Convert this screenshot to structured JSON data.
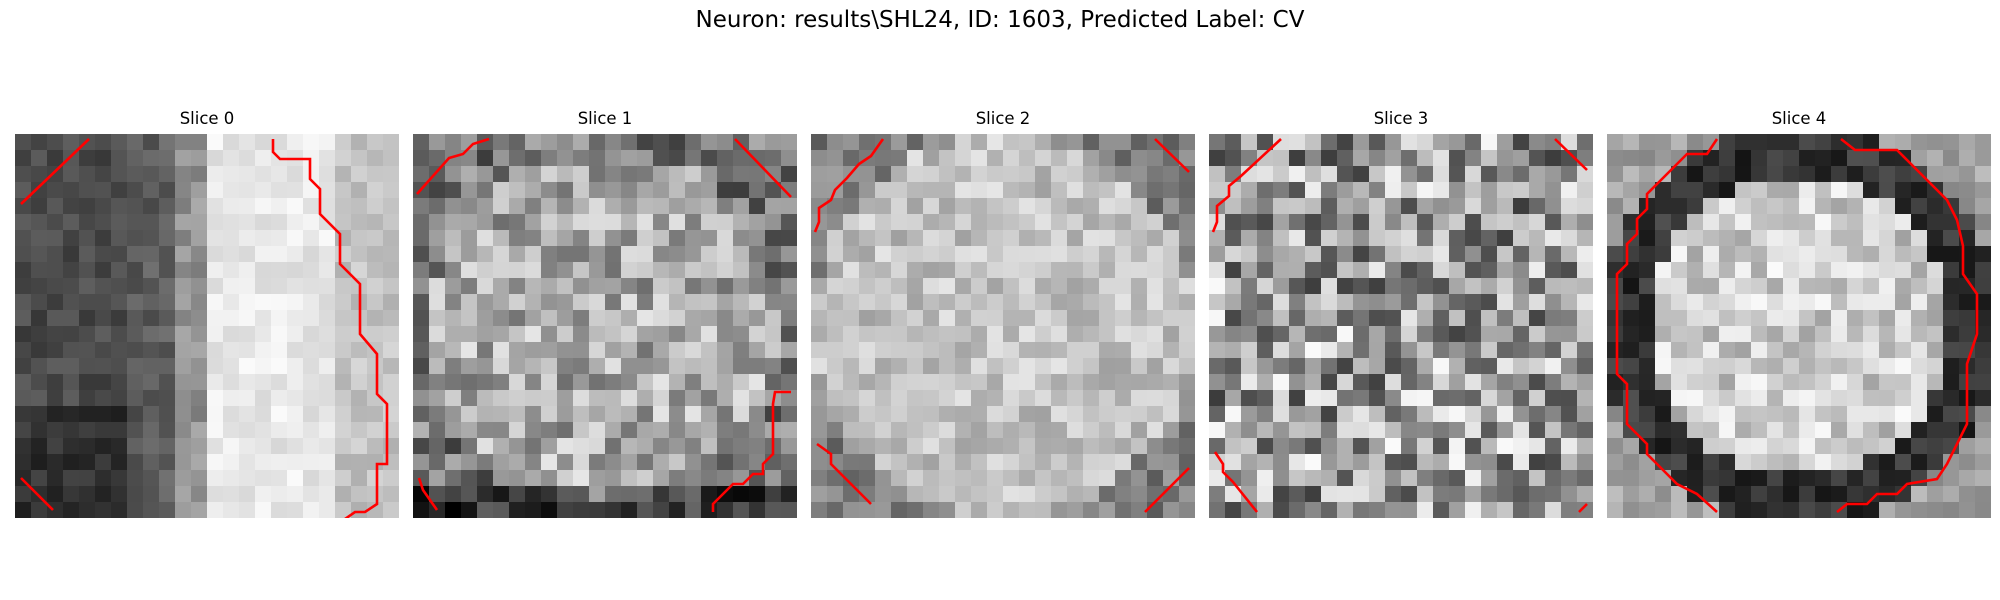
{
  "figure": {
    "title": "Neuron: results\\SHL24, ID: 1603, Predicted Label: CV",
    "contour_color": "#ff0000",
    "colormap": "gray"
  },
  "panels": [
    {
      "title": "Slice 0",
      "pattern": "left-dark-right-bright"
    },
    {
      "title": "Slice 1",
      "pattern": "textured-disc"
    },
    {
      "title": "Slice 2",
      "pattern": "bright-disc"
    },
    {
      "title": "Slice 3",
      "pattern": "noisy"
    },
    {
      "title": "Slice 4",
      "pattern": "ring"
    }
  ]
}
